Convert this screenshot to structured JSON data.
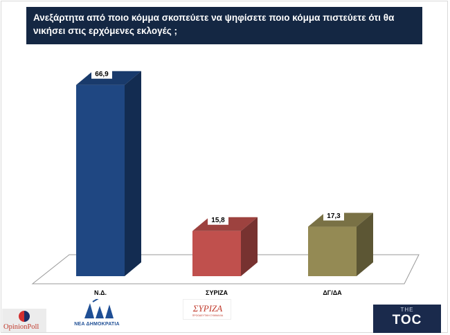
{
  "title": "Ανεξάρτητα από ποιο κόμμα σκοπεύετε να ψηφίσετε ποιο κόμμα πιστεύετε ότι θα νικήσει στις ερχόμενες εκλογές ;",
  "chart_data": {
    "type": "bar",
    "title": "Ανεξάρτητα από ποιο κόμμα σκοπεύετε να ψηφίσετε ποιο κόμμα πιστεύετε ότι θα νικήσει στις ερχόμενες εκλογές ;",
    "categories": [
      "Ν.Δ.",
      "ΣΥΡΙΖΑ",
      "ΔΓ/ΔΑ"
    ],
    "values": [
      66.9,
      15.8,
      17.3
    ],
    "value_labels": [
      "66,9",
      "15,8",
      "17,3"
    ],
    "colors": [
      "#1f4782",
      "#c0504d",
      "#948a54"
    ],
    "xlabel": "",
    "ylabel": "",
    "ylim": [
      0,
      70
    ],
    "grid": false,
    "legend": "none"
  },
  "logos": {
    "opinion_poll": "OpinionPoll",
    "nd_party": "ΝΕΑ ΔΗΜΟΚΡΑΤΙΑ",
    "syriza": "ΣΥΡΙΖΑ",
    "syriza_sub": "ΠΡΟΟΔΕΥΤΙΚΗ ΣΥΜΜΑΧΙΑ",
    "toc_the": "THE",
    "toc_main": "TOC"
  }
}
